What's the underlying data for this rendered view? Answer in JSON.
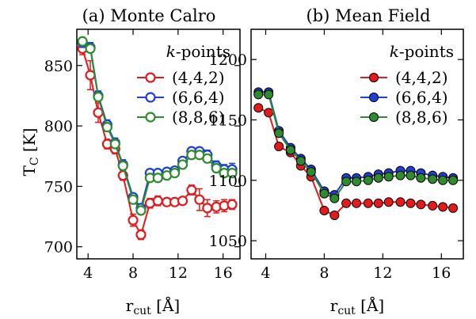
{
  "chart_data": [
    {
      "type": "line",
      "title": "(a) Monte Calro",
      "xlabel": "r_cut [Å]",
      "ylabel": "T_C [K]",
      "xlim": [
        3,
        17.5
      ],
      "ylim": [
        690,
        880
      ],
      "xticks": [
        4,
        8,
        12,
        16
      ],
      "yticks": [
        700,
        750,
        800,
        850
      ],
      "legend_title": "k-points",
      "legend_position": "top-right",
      "marker": "open-circle",
      "error_bars": true,
      "series": [
        {
          "name": "(4,4,2)",
          "color": "#e41a1c",
          "points": [
            {
              "x": 3.5,
              "y": 864,
              "err": 5
            },
            {
              "x": 4.2,
              "y": 842,
              "err": 12
            },
            {
              "x": 4.9,
              "y": 811,
              "err": 8
            },
            {
              "x": 5.7,
              "y": 785,
              "err": 4
            },
            {
              "x": 6.4,
              "y": 781,
              "err": 4
            },
            {
              "x": 7.1,
              "y": 759,
              "err": 4
            },
            {
              "x": 8.0,
              "y": 722,
              "err": 5
            },
            {
              "x": 8.7,
              "y": 710,
              "err": 4
            },
            {
              "x": 9.5,
              "y": 736,
              "err": 4
            },
            {
              "x": 10.2,
              "y": 738,
              "err": 4
            },
            {
              "x": 11.0,
              "y": 737,
              "err": 3
            },
            {
              "x": 11.7,
              "y": 737,
              "err": 3
            },
            {
              "x": 12.4,
              "y": 738,
              "err": 3
            },
            {
              "x": 13.2,
              "y": 747,
              "err": 4
            },
            {
              "x": 13.9,
              "y": 739,
              "err": 9
            },
            {
              "x": 14.6,
              "y": 732,
              "err": 7
            },
            {
              "x": 15.4,
              "y": 733,
              "err": 5
            },
            {
              "x": 16.1,
              "y": 734,
              "err": 5
            },
            {
              "x": 16.8,
              "y": 735,
              "err": 4
            }
          ]
        },
        {
          "name": "(6,6,4)",
          "color": "#1f3fd6",
          "points": [
            {
              "x": 3.5,
              "y": 869,
              "err": 4
            },
            {
              "x": 4.2,
              "y": 865,
              "err": 4
            },
            {
              "x": 4.9,
              "y": 825,
              "err": 4
            },
            {
              "x": 5.7,
              "y": 801,
              "err": 4
            },
            {
              "x": 6.4,
              "y": 786,
              "err": 4
            },
            {
              "x": 7.1,
              "y": 768,
              "err": 4
            },
            {
              "x": 8.0,
              "y": 741,
              "err": 3
            },
            {
              "x": 8.7,
              "y": 732,
              "err": 3
            },
            {
              "x": 9.5,
              "y": 761,
              "err": 3
            },
            {
              "x": 10.2,
              "y": 761,
              "err": 3
            },
            {
              "x": 11.0,
              "y": 762,
              "err": 3
            },
            {
              "x": 11.7,
              "y": 763,
              "err": 3
            },
            {
              "x": 12.4,
              "y": 771,
              "err": 3
            },
            {
              "x": 13.2,
              "y": 779,
              "err": 3
            },
            {
              "x": 13.9,
              "y": 779,
              "err": 3
            },
            {
              "x": 14.6,
              "y": 776,
              "err": 4
            },
            {
              "x": 15.4,
              "y": 767,
              "err": 4
            },
            {
              "x": 16.1,
              "y": 764,
              "err": 4
            },
            {
              "x": 16.8,
              "y": 764,
              "err": 5
            }
          ]
        },
        {
          "name": "(8,8,6)",
          "color": "#2e8b2e",
          "points": [
            {
              "x": 3.5,
              "y": 870,
              "err": 3
            },
            {
              "x": 4.2,
              "y": 864,
              "err": 3
            },
            {
              "x": 4.9,
              "y": 824,
              "err": 3
            },
            {
              "x": 5.7,
              "y": 799,
              "err": 3
            },
            {
              "x": 6.4,
              "y": 785,
              "err": 3
            },
            {
              "x": 7.1,
              "y": 767,
              "err": 3
            },
            {
              "x": 8.0,
              "y": 739,
              "err": 3
            },
            {
              "x": 8.7,
              "y": 730,
              "err": 3
            },
            {
              "x": 9.5,
              "y": 757,
              "err": 3
            },
            {
              "x": 10.2,
              "y": 757,
              "err": 3
            },
            {
              "x": 11.0,
              "y": 759,
              "err": 3
            },
            {
              "x": 11.7,
              "y": 761,
              "err": 3
            },
            {
              "x": 12.4,
              "y": 768,
              "err": 3
            },
            {
              "x": 13.2,
              "y": 776,
              "err": 3
            },
            {
              "x": 13.9,
              "y": 776,
              "err": 3
            },
            {
              "x": 14.6,
              "y": 773,
              "err": 3
            },
            {
              "x": 15.4,
              "y": 765,
              "err": 3
            },
            {
              "x": 16.1,
              "y": 761,
              "err": 3
            },
            {
              "x": 16.8,
              "y": 761,
              "err": 3
            }
          ]
        }
      ]
    },
    {
      "type": "line",
      "title": "(b) Mean Field",
      "xlabel": "r_cut [Å]",
      "ylabel": "",
      "xlim": [
        3,
        17.5
      ],
      "ylim": [
        1035,
        1225
      ],
      "xticks": [
        4,
        8,
        12,
        16
      ],
      "yticks": [
        1050,
        1100,
        1150,
        1200
      ],
      "legend_title": "k-points",
      "legend_position": "top-right",
      "marker": "filled-circle",
      "error_bars": false,
      "series": [
        {
          "name": "(4,4,2)",
          "color": "#e41a1c",
          "points": [
            {
              "x": 3.5,
              "y": 1160
            },
            {
              "x": 4.2,
              "y": 1156
            },
            {
              "x": 4.9,
              "y": 1128
            },
            {
              "x": 5.7,
              "y": 1123
            },
            {
              "x": 6.4,
              "y": 1112
            },
            {
              "x": 7.1,
              "y": 1103
            },
            {
              "x": 8.0,
              "y": 1075
            },
            {
              "x": 8.7,
              "y": 1071
            },
            {
              "x": 9.5,
              "y": 1081
            },
            {
              "x": 10.2,
              "y": 1081
            },
            {
              "x": 11.0,
              "y": 1081
            },
            {
              "x": 11.7,
              "y": 1081
            },
            {
              "x": 12.4,
              "y": 1082
            },
            {
              "x": 13.2,
              "y": 1082
            },
            {
              "x": 13.9,
              "y": 1081
            },
            {
              "x": 14.6,
              "y": 1080
            },
            {
              "x": 15.4,
              "y": 1079
            },
            {
              "x": 16.1,
              "y": 1078
            },
            {
              "x": 16.8,
              "y": 1077
            }
          ]
        },
        {
          "name": "(6,6,4)",
          "color": "#1f3fd6",
          "points": [
            {
              "x": 3.5,
              "y": 1173
            },
            {
              "x": 4.2,
              "y": 1173
            },
            {
              "x": 4.9,
              "y": 1141
            },
            {
              "x": 5.7,
              "y": 1127
            },
            {
              "x": 6.4,
              "y": 1118
            },
            {
              "x": 7.1,
              "y": 1109
            },
            {
              "x": 8.0,
              "y": 1091
            },
            {
              "x": 8.7,
              "y": 1088
            },
            {
              "x": 9.5,
              "y": 1102
            },
            {
              "x": 10.2,
              "y": 1102
            },
            {
              "x": 11.0,
              "y": 1103
            },
            {
              "x": 11.7,
              "y": 1105
            },
            {
              "x": 12.4,
              "y": 1106
            },
            {
              "x": 13.2,
              "y": 1108
            },
            {
              "x": 13.9,
              "y": 1108
            },
            {
              "x": 14.6,
              "y": 1106
            },
            {
              "x": 15.4,
              "y": 1104
            },
            {
              "x": 16.1,
              "y": 1103
            },
            {
              "x": 16.8,
              "y": 1102
            }
          ]
        },
        {
          "name": "(8,8,6)",
          "color": "#2e8b2e",
          "points": [
            {
              "x": 3.5,
              "y": 1171
            },
            {
              "x": 4.2,
              "y": 1171
            },
            {
              "x": 4.9,
              "y": 1139
            },
            {
              "x": 5.7,
              "y": 1125
            },
            {
              "x": 6.4,
              "y": 1116
            },
            {
              "x": 7.1,
              "y": 1107
            },
            {
              "x": 8.0,
              "y": 1089
            },
            {
              "x": 8.7,
              "y": 1085
            },
            {
              "x": 9.5,
              "y": 1099
            },
            {
              "x": 10.2,
              "y": 1099
            },
            {
              "x": 11.0,
              "y": 1100
            },
            {
              "x": 11.7,
              "y": 1102
            },
            {
              "x": 12.4,
              "y": 1103
            },
            {
              "x": 13.2,
              "y": 1104
            },
            {
              "x": 13.9,
              "y": 1104
            },
            {
              "x": 14.6,
              "y": 1102
            },
            {
              "x": 15.4,
              "y": 1101
            },
            {
              "x": 16.1,
              "y": 1100
            },
            {
              "x": 16.8,
              "y": 1100
            }
          ]
        }
      ]
    }
  ]
}
